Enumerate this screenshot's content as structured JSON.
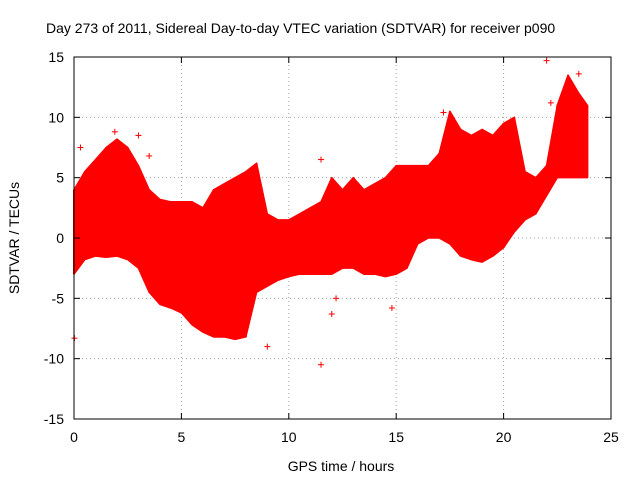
{
  "chart_data": {
    "type": "scatter",
    "title": "Day 273 of 2011, Sidereal Day-to-day VTEC variation (SDTVAR) for receiver p090",
    "xlabel": "GPS time / hours",
    "ylabel": "SDTVAR / TECUs",
    "xlim": [
      0,
      25
    ],
    "ylim": [
      -15,
      15
    ],
    "xticks": [
      0,
      5,
      10,
      15,
      20,
      25
    ],
    "yticks": [
      -15,
      -10,
      -5,
      0,
      5,
      10,
      15
    ],
    "grid": true,
    "marker": "+",
    "series": [
      {
        "name": "SDTVAR",
        "color": "#ff0000",
        "envelope_note": "dense band: per-hour estimated lower and upper bounds",
        "x": [
          0,
          0.5,
          1,
          1.5,
          2,
          2.5,
          3,
          3.5,
          4,
          4.5,
          5,
          5.5,
          6,
          6.5,
          7,
          7.5,
          8,
          8.5,
          9,
          9.5,
          10,
          10.5,
          11,
          11.5,
          12,
          12.5,
          13,
          13.5,
          14,
          14.5,
          15,
          15.5,
          16,
          16.5,
          17,
          17.5,
          18,
          18.5,
          19,
          19.5,
          20,
          20.5,
          21,
          21.5,
          22,
          22.5,
          23,
          23.5,
          23.9
        ],
        "lower": [
          -3,
          -1.8,
          -1.5,
          -1.6,
          -1.5,
          -1.8,
          -2.5,
          -4.5,
          -5.5,
          -5.8,
          -6.2,
          -7.2,
          -7.8,
          -8.2,
          -8.2,
          -8.4,
          -8.2,
          -4.5,
          -4.0,
          -3.5,
          -3.2,
          -3.0,
          -3.0,
          -3.0,
          -3.0,
          -2.5,
          -2.5,
          -3.0,
          -3.0,
          -3.2,
          -3.0,
          -2.5,
          -0.5,
          0.0,
          0.0,
          -0.5,
          -1.5,
          -1.8,
          -2.0,
          -1.5,
          -0.8,
          0.5,
          1.5,
          2.0,
          3.5,
          5.0,
          5.0,
          5.0,
          5.0
        ],
        "upper": [
          4.0,
          5.5,
          6.5,
          7.5,
          8.2,
          7.5,
          6.0,
          4.0,
          3.2,
          3.0,
          3.0,
          3.0,
          2.5,
          4.0,
          4.5,
          5.0,
          5.5,
          6.2,
          2.0,
          1.5,
          1.5,
          2.0,
          2.5,
          3.0,
          5.0,
          4.0,
          5.0,
          4.0,
          4.5,
          5.0,
          6.0,
          6.0,
          6.0,
          6.0,
          7.0,
          10.5,
          9.0,
          8.5,
          9.0,
          8.5,
          9.5,
          10.0,
          5.5,
          5.0,
          6.0,
          11.0,
          13.5,
          12.0,
          11.0
        ]
      }
    ],
    "outliers": [
      {
        "x": 0.02,
        "y": -8.3
      },
      {
        "x": 0.3,
        "y": 7.5
      },
      {
        "x": 1.9,
        "y": 8.8
      },
      {
        "x": 3.0,
        "y": 8.5
      },
      {
        "x": 3.5,
        "y": 6.8
      },
      {
        "x": 9.0,
        "y": -9.0
      },
      {
        "x": 11.5,
        "y": -10.5
      },
      {
        "x": 11.5,
        "y": 6.5
      },
      {
        "x": 12.0,
        "y": -6.3
      },
      {
        "x": 12.2,
        "y": -5.0
      },
      {
        "x": 14.8,
        "y": -5.8
      },
      {
        "x": 17.2,
        "y": 10.4
      },
      {
        "x": 22.0,
        "y": 14.7
      },
      {
        "x": 22.2,
        "y": 11.2
      },
      {
        "x": 23.5,
        "y": 13.6
      }
    ]
  }
}
